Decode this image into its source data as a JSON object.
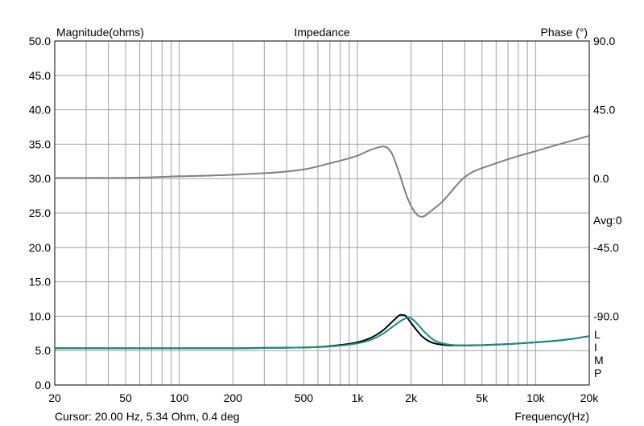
{
  "chart_data": {
    "type": "line",
    "title": "Impedance",
    "ylabel": "Magnitude(ohms)",
    "y2label": "Phase (°)",
    "xlabel": "Frequency(Hz)",
    "x_scale": "log",
    "xlim": [
      20,
      20000
    ],
    "ylim": [
      0,
      50
    ],
    "y2lim": [
      -135,
      90
    ],
    "grid": true,
    "x_ticks": [
      20,
      50,
      100,
      200,
      500,
      1000,
      2000,
      5000,
      10000,
      20000
    ],
    "x_tick_labels": [
      "20",
      "50",
      "100",
      "200",
      "500",
      "1k",
      "2k",
      "5k",
      "10k",
      "20k"
    ],
    "y_ticks": [
      0,
      5,
      10,
      15,
      20,
      25,
      30,
      35,
      40,
      45,
      50
    ],
    "y_tick_labels": [
      "0.0",
      "5.0",
      "10.0",
      "15.0",
      "20.0",
      "25.0",
      "30.0",
      "35.0",
      "40.0",
      "45.0",
      "50.0"
    ],
    "y2_ticks": [
      90,
      45,
      0,
      -45,
      -90
    ],
    "y2_tick_labels": [
      "90.0",
      "45.0",
      "0.0",
      "-45.0",
      "-90.0"
    ],
    "avg_label": "Avg:0",
    "side_letters": [
      "L",
      "I",
      "M",
      "P"
    ],
    "cursor_text": "Cursor: 20.00 Hz, 5.34 Ohm, 0.4 deg",
    "series": [
      {
        "color": "#000000",
        "axis": "magnitude",
        "x": [
          20,
          50,
          100,
          200,
          300,
          500,
          700,
          1000,
          1200,
          1400,
          1600,
          1750,
          1850,
          1950,
          2100,
          2300,
          2600,
          3000,
          3500,
          4000,
          5000,
          7000,
          10000,
          15000,
          20000
        ],
        "y": [
          5.35,
          5.35,
          5.35,
          5.35,
          5.4,
          5.45,
          5.65,
          6.2,
          6.9,
          8.0,
          9.4,
          10.2,
          10.1,
          9.4,
          8.3,
          7.1,
          6.2,
          5.85,
          5.75,
          5.75,
          5.8,
          5.95,
          6.2,
          6.6,
          7.1
        ]
      },
      {
        "color": "#1a8c86",
        "axis": "magnitude",
        "x": [
          20,
          50,
          100,
          200,
          300,
          500,
          700,
          1000,
          1200,
          1400,
          1600,
          1800,
          1950,
          2050,
          2200,
          2400,
          2700,
          3000,
          3500,
          4000,
          5000,
          7000,
          10000,
          15000,
          20000
        ],
        "y": [
          5.33,
          5.33,
          5.33,
          5.33,
          5.37,
          5.45,
          5.6,
          6.05,
          6.6,
          7.5,
          8.6,
          9.5,
          9.8,
          9.5,
          8.7,
          7.6,
          6.5,
          6.05,
          5.8,
          5.75,
          5.78,
          5.95,
          6.2,
          6.6,
          7.1
        ]
      },
      {
        "color": "#808080",
        "axis": "phase",
        "x": [
          20,
          50,
          100,
          200,
          500,
          700,
          1000,
          1200,
          1400,
          1550,
          1700,
          1900,
          2100,
          2300,
          2600,
          3000,
          4000,
          6000,
          10000,
          20000
        ],
        "y": [
          0.4,
          0.5,
          1.5,
          2.5,
          6.0,
          10.0,
          15.0,
          19.0,
          21.0,
          17.0,
          5.0,
          -12.0,
          -22.0,
          -25.0,
          -21.0,
          -15.0,
          1.0,
          10.0,
          18.0,
          28.0
        ]
      }
    ]
  }
}
